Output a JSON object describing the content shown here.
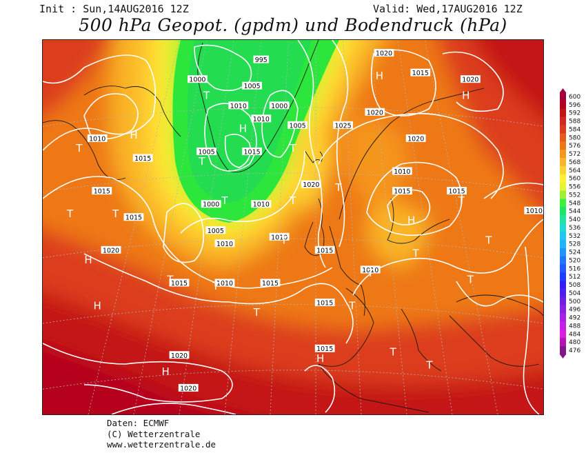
{
  "header": {
    "init_text": "Init : Sun,14AUG2016 12Z",
    "valid_text": "Valid: Wed,17AUG2016 12Z",
    "title": "500 hPa Geopot. (gpdm) und Bodendruck (hPa)"
  },
  "credits": {
    "line1": "Daten: ECMWF",
    "line2": "(C) Wetterzentrale",
    "line3": "www.wetterzentrale.de"
  },
  "color_scale": {
    "min": 476,
    "max": 600,
    "step": 4,
    "labels": [
      "600",
      "596",
      "592",
      "588",
      "584",
      "580",
      "576",
      "572",
      "568",
      "564",
      "560",
      "556",
      "552",
      "548",
      "544",
      "540",
      "536",
      "532",
      "528",
      "524",
      "520",
      "516",
      "512",
      "508",
      "504",
      "500",
      "496",
      "492",
      "488",
      "484",
      "480",
      "476"
    ],
    "colors": [
      "#a0003c",
      "#b5001e",
      "#c41414",
      "#d2281e",
      "#dc3c1e",
      "#e65a1e",
      "#ee7814",
      "#f5961e",
      "#fab428",
      "#ffd232",
      "#fff032",
      "#e6f532",
      "#a0f032",
      "#3cf03c",
      "#1ee664",
      "#1ee6a0",
      "#1edcd2",
      "#1ec8ee",
      "#1eb4ff",
      "#1e96ff",
      "#1e78ff",
      "#1e5aff",
      "#1e3cff",
      "#321efa",
      "#501ef0",
      "#6e1ee6",
      "#8c1ee6",
      "#aa1ee6",
      "#c81ee6",
      "#dc1edc",
      "#b414b4",
      "#82148c"
    ]
  },
  "isobar_labels": [
    {
      "text": "1010",
      "lon": -48,
      "lat": 65
    },
    {
      "text": "1015",
      "lon": -38,
      "lat": 62
    },
    {
      "text": "1000",
      "lon": -26,
      "lat": 74
    },
    {
      "text": "995",
      "lon": -12,
      "lat": 77
    },
    {
      "text": "1005",
      "lon": -14,
      "lat": 73
    },
    {
      "text": "1010",
      "lon": -17,
      "lat": 70
    },
    {
      "text": "1010",
      "lon": -12,
      "lat": 68
    },
    {
      "text": "1000",
      "lon": -8,
      "lat": 70
    },
    {
      "text": "1005",
      "lon": -4,
      "lat": 67
    },
    {
      "text": "1005",
      "lon": -24,
      "lat": 63
    },
    {
      "text": "1015",
      "lon": -14,
      "lat": 63
    },
    {
      "text": "1020",
      "lon": 15,
      "lat": 78
    },
    {
      "text": "1015",
      "lon": 23,
      "lat": 75
    },
    {
      "text": "1020",
      "lon": 34,
      "lat": 74
    },
    {
      "text": "1020",
      "lon": 13,
      "lat": 69
    },
    {
      "text": "1025",
      "lon": 6,
      "lat": 67
    },
    {
      "text": "1020",
      "lon": 22,
      "lat": 65
    },
    {
      "text": "1015",
      "lon": -47,
      "lat": 57
    },
    {
      "text": "1015",
      "lon": -40,
      "lat": 53
    },
    {
      "text": "1000",
      "lon": -23,
      "lat": 55
    },
    {
      "text": "1010",
      "lon": -12,
      "lat": 55
    },
    {
      "text": "1020",
      "lon": -1,
      "lat": 58
    },
    {
      "text": "1010",
      "lon": 19,
      "lat": 60
    },
    {
      "text": "1015",
      "lon": 19,
      "lat": 57
    },
    {
      "text": "1015",
      "lon": 31,
      "lat": 57
    },
    {
      "text": "1010",
      "lon": 48,
      "lat": 54
    },
    {
      "text": "1005",
      "lon": -22,
      "lat": 51
    },
    {
      "text": "1010",
      "lon": -20,
      "lat": 49
    },
    {
      "text": "1010",
      "lon": -8,
      "lat": 50
    },
    {
      "text": "1020",
      "lon": -45,
      "lat": 48
    },
    {
      "text": "1015",
      "lon": 2,
      "lat": 48
    },
    {
      "text": "1010",
      "lon": 12,
      "lat": 45
    },
    {
      "text": "1015",
      "lon": -30,
      "lat": 43
    },
    {
      "text": "1010",
      "lon": -20,
      "lat": 43
    },
    {
      "text": "1015",
      "lon": -10,
      "lat": 43
    },
    {
      "text": "1015",
      "lon": 2,
      "lat": 40
    },
    {
      "text": "1020",
      "lon": -30,
      "lat": 32
    },
    {
      "text": "1015",
      "lon": 2,
      "lat": 33
    },
    {
      "text": "1020",
      "lon": -28,
      "lat": 27
    }
  ],
  "pressure_centers": [
    {
      "type": "H",
      "lon": -40,
      "lat": 65
    },
    {
      "type": "T",
      "lon": -52,
      "lat": 63
    },
    {
      "type": "T",
      "lon": -24,
      "lat": 71
    },
    {
      "type": "H",
      "lon": -16,
      "lat": 66
    },
    {
      "type": "T",
      "lon": -5,
      "lat": 63
    },
    {
      "type": "H",
      "lon": 14,
      "lat": 74
    },
    {
      "type": "H",
      "lon": 33,
      "lat": 71
    },
    {
      "type": "T",
      "lon": -25,
      "lat": 61
    },
    {
      "type": "T",
      "lon": -20,
      "lat": 55
    },
    {
      "type": "T",
      "lon": -5,
      "lat": 55
    },
    {
      "type": "T",
      "lon": -54,
      "lat": 53
    },
    {
      "type": "T",
      "lon": -44,
      "lat": 53
    },
    {
      "type": "T",
      "lon": 5,
      "lat": 57
    },
    {
      "type": "T",
      "lon": 32,
      "lat": 55
    },
    {
      "type": "H",
      "lon": -50,
      "lat": 46
    },
    {
      "type": "H",
      "lon": 21,
      "lat": 52
    },
    {
      "type": "T",
      "lon": -7,
      "lat": 49
    },
    {
      "type": "T",
      "lon": 38,
      "lat": 49
    },
    {
      "type": "T",
      "lon": 22,
      "lat": 47
    },
    {
      "type": "T",
      "lon": -32,
      "lat": 43
    },
    {
      "type": "T",
      "lon": -22,
      "lat": 42
    },
    {
      "type": "T",
      "lon": 12,
      "lat": 44
    },
    {
      "type": "T",
      "lon": 34,
      "lat": 43
    },
    {
      "type": "H",
      "lon": -48,
      "lat": 39
    },
    {
      "type": "T",
      "lon": -13,
      "lat": 38
    },
    {
      "type": "T",
      "lon": 8,
      "lat": 39
    },
    {
      "type": "H",
      "lon": -33,
      "lat": 29
    },
    {
      "type": "H",
      "lon": 1,
      "lat": 31
    },
    {
      "type": "T",
      "lon": 17,
      "lat": 32
    },
    {
      "type": "T",
      "lon": 25,
      "lat": 30
    }
  ]
}
